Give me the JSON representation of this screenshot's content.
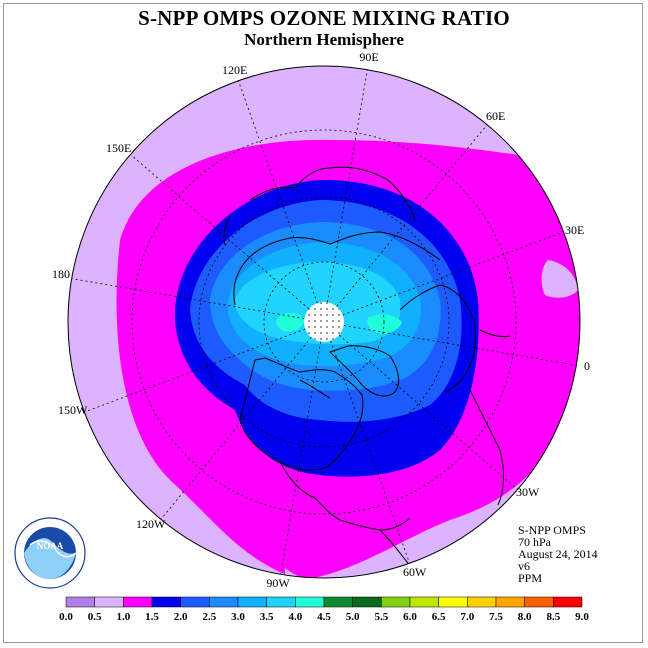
{
  "header": {
    "title": "S-NPP OMPS OZONE MIXING RATIO",
    "subtitle": "Northern Hemisphere"
  },
  "info": {
    "instrument": "S-NPP OMPS",
    "level": "70 hPa",
    "date": "August 24, 2014",
    "version": "v6",
    "units": "PPM"
  },
  "map": {
    "projection": "north polar stereographic",
    "longitude_labels": [
      "90E",
      "60E",
      "30E",
      "0",
      "30W",
      "60W",
      "90W",
      "120W",
      "150W",
      "180",
      "150E",
      "120E"
    ],
    "logo_text": "NOAA"
  },
  "colorbar": {
    "ticks": [
      "0.0",
      "0.5",
      "1.0",
      "1.5",
      "2.0",
      "2.5",
      "3.0",
      "3.5",
      "4.0",
      "4.5",
      "5.0",
      "5.5",
      "6.0",
      "6.5",
      "7.0",
      "7.5",
      "8.0",
      "8.5",
      "9.0"
    ],
    "colors": [
      "#b07fe8",
      "#dcb3ff",
      "#ff00ff",
      "#0000ee",
      "#1e5bff",
      "#1a8cff",
      "#10b0ff",
      "#20d4ff",
      "#20ffd8",
      "#108a30",
      "#0a6a1c",
      "#7fd010",
      "#bfe800",
      "#ffff00",
      "#ffd000",
      "#ffa500",
      "#ff6000",
      "#ff0000",
      "#8b5a3a"
    ]
  }
}
